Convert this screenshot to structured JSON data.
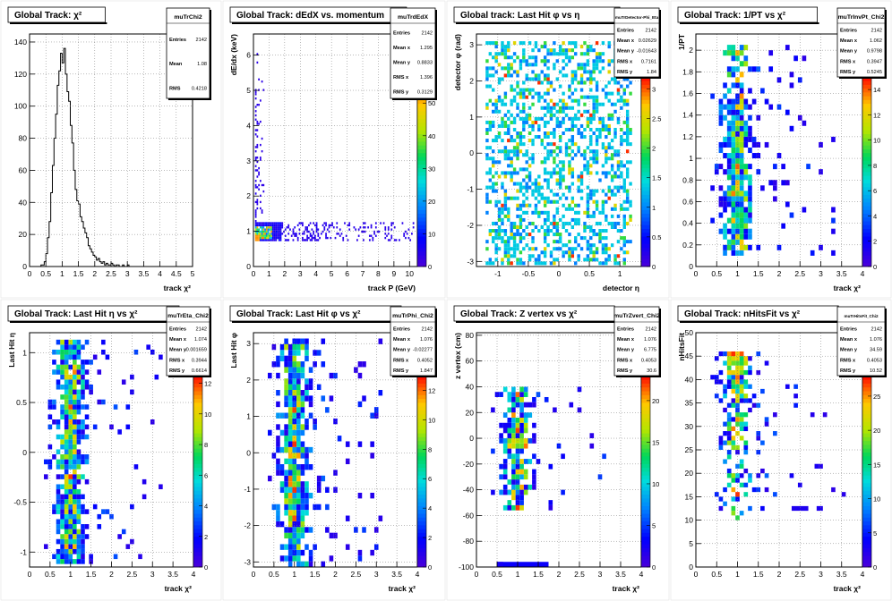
{
  "chart_data": [
    {
      "type": "histogram",
      "title": "Global Track: χ²",
      "xlabel": "track  χ²",
      "ylabel": "",
      "xlim": [
        0,
        5
      ],
      "ylim": [
        0,
        145
      ],
      "x_ticks": [
        "0",
        "0.5",
        "1",
        "1.5",
        "2",
        "2.5",
        "3",
        "3.5",
        "4",
        "4.5",
        "5"
      ],
      "y_ticks": [
        "0",
        "20",
        "40",
        "60",
        "80",
        "100",
        "120",
        "140"
      ],
      "stats": {
        "name": "muTrChi2",
        "rows": [
          [
            "Entries",
            "2142"
          ],
          [
            "Mean",
            "1.08"
          ],
          [
            "RMS",
            "0.4218"
          ]
        ]
      },
      "bins_x": [
        0.3,
        0.35,
        0.4,
        0.45,
        0.5,
        0.55,
        0.6,
        0.65,
        0.7,
        0.75,
        0.8,
        0.85,
        0.9,
        0.95,
        1.0,
        1.05,
        1.1,
        1.15,
        1.2,
        1.25,
        1.3,
        1.35,
        1.4,
        1.45,
        1.5,
        1.55,
        1.6,
        1.65,
        1.7,
        1.75,
        1.8,
        1.85,
        1.9,
        1.95,
        2.0,
        2.05,
        2.1,
        2.15,
        2.2,
        2.25,
        2.3,
        2.35,
        2.4,
        2.45,
        2.5,
        2.55,
        2.6,
        2.65,
        2.7,
        2.75,
        2.8,
        2.85,
        2.9,
        2.95,
        3.0,
        3.05,
        3.1,
        3.15,
        3.2
      ],
      "bins_y": [
        0,
        1,
        1,
        3,
        8,
        18,
        28,
        46,
        63,
        80,
        95,
        113,
        122,
        133,
        127,
        136,
        120,
        109,
        103,
        88,
        77,
        60,
        48,
        41,
        39,
        31,
        28,
        24,
        21,
        18,
        13,
        11,
        9,
        7,
        6,
        4,
        5,
        3,
        2,
        3,
        1,
        2,
        1,
        1,
        2,
        1,
        0,
        1,
        1,
        0,
        0,
        1,
        0,
        0,
        1,
        0,
        0,
        0,
        0
      ]
    },
    {
      "type": "heatmap",
      "title": "Global Track: dEdX vs. momentum",
      "xlabel": "track P (GeV)",
      "ylabel": "dE/dx (keV)",
      "xlim": [
        0,
        10.5
      ],
      "ylim": [
        0,
        6.6
      ],
      "x_ticks": [
        "0",
        "1",
        "2",
        "3",
        "4",
        "5",
        "6",
        "7",
        "8",
        "9",
        "10"
      ],
      "y_ticks": [
        "0",
        "1",
        "2",
        "3",
        "4",
        "5",
        "6"
      ],
      "z_ticks": [
        "0",
        "10",
        "20",
        "30",
        "40",
        "50"
      ],
      "zmax": 58,
      "stats": {
        "name": "muTrdEdX",
        "rows": [
          [
            "Entries",
            "2142"
          ],
          [
            "Mean x",
            "1.295"
          ],
          [
            "Mean y",
            "0.8833"
          ],
          [
            "RMS x",
            "1.396"
          ],
          [
            "RMS y",
            "0.3129"
          ]
        ]
      }
    },
    {
      "type": "heatmap",
      "title": "Global track: Last Hit φ vs η",
      "xlabel": "detector  η",
      "ylabel": "detector  φ (rad)",
      "xlim": [
        -1.35,
        1.35
      ],
      "ylim": [
        -3.14,
        3.3
      ],
      "x_ticks": [
        "-1",
        "-0.5",
        "0",
        "0.5",
        "1"
      ],
      "y_ticks": [
        "-3",
        "-2",
        "-1",
        "0",
        "1",
        "2",
        "3"
      ],
      "z_ticks": [
        "0",
        "0.5",
        "1",
        "1.5",
        "2",
        "2.5",
        "3"
      ],
      "zmax": 3.2,
      "stats": {
        "name": "muTrDetector-Phi_Eta",
        "rows": [
          [
            "Entries",
            "2142"
          ],
          [
            "Mean x",
            "0.02629"
          ],
          [
            "Mean y",
            "-0.01643"
          ],
          [
            "RMS x",
            "0.7161"
          ],
          [
            "RMS y",
            "1.84"
          ]
        ]
      }
    },
    {
      "type": "heatmap",
      "title": "Global Track: 1/PT vs χ²",
      "xlabel": "track  χ²",
      "ylabel": "1/PT",
      "xlim": [
        0,
        4
      ],
      "ylim": [
        0,
        2.15
      ],
      "x_ticks": [
        "0",
        "0.5",
        "1",
        "1.5",
        "2",
        "2.5",
        "3",
        "3.5",
        "4"
      ],
      "y_ticks": [
        "0",
        "0.2",
        "0.4",
        "0.6",
        "0.8",
        "1",
        "1.2",
        "1.4",
        "1.6",
        "1.8",
        "2"
      ],
      "z_ticks": [
        "0",
        "2",
        "4",
        "6",
        "8",
        "10",
        "12",
        "14"
      ],
      "zmax": 15,
      "stats": {
        "name": "muTrInvPt_Chi2",
        "rows": [
          [
            "Entries",
            "2142"
          ],
          [
            "Mean x",
            "1.062"
          ],
          [
            "Mean y",
            "0.9798"
          ],
          [
            "RMS x",
            "0.3947"
          ],
          [
            "RMS y",
            "0.5245"
          ]
        ]
      }
    },
    {
      "type": "heatmap",
      "title": "Global Track: Last Hit η vs χ²",
      "xlabel": "track  χ²",
      "ylabel": "Last Hit  η",
      "xlim": [
        0,
        4
      ],
      "ylim": [
        -1.15,
        1.2
      ],
      "x_ticks": [
        "0",
        "0.5",
        "1",
        "1.5",
        "2",
        "2.5",
        "3",
        "3.5",
        "4"
      ],
      "y_ticks": [
        "-1",
        "-0.5",
        "0",
        "0.5",
        "1"
      ],
      "z_ticks": [
        "0",
        "2",
        "4",
        "6",
        "8",
        "10",
        "12"
      ],
      "zmax": 12.5,
      "stats": {
        "name": "muTrEta_Chi2",
        "rows": [
          [
            "Entries",
            "2142"
          ],
          [
            "Mean x",
            "1.074"
          ],
          [
            "Mean y",
            "-0.001659"
          ],
          [
            "RMS x",
            "0.3944"
          ],
          [
            "RMS y",
            "0.6614"
          ]
        ]
      }
    },
    {
      "type": "heatmap",
      "title": "Global Track: Last Hit φ vs χ²",
      "xlabel": "track  χ²",
      "ylabel": "Last Hit  φ",
      "xlim": [
        0,
        4
      ],
      "ylim": [
        -3.14,
        3.3
      ],
      "x_ticks": [
        "0",
        "0.5",
        "1",
        "1.5",
        "2",
        "2.5",
        "3",
        "3.5",
        "4"
      ],
      "y_ticks": [
        "-3",
        "-2",
        "-1",
        "0",
        "1",
        "2",
        "3"
      ],
      "z_ticks": [
        "0",
        "2",
        "4",
        "6",
        "8",
        "10",
        "12"
      ],
      "zmax": 13,
      "stats": {
        "name": "muTrPhi_Chi2",
        "rows": [
          [
            "Entries",
            "2142"
          ],
          [
            "Mean x",
            "1.076"
          ],
          [
            "Mean y",
            "-0.02277"
          ],
          [
            "RMS x",
            "0.4052"
          ],
          [
            "RMS y",
            "1.847"
          ]
        ]
      }
    },
    {
      "type": "heatmap",
      "title": "Global Track: Z vertex vs χ²",
      "xlabel": "track  χ²",
      "ylabel": "z vertex (cm)",
      "xlim": [
        0,
        4
      ],
      "ylim": [
        -100,
        82
      ],
      "x_ticks": [
        "0",
        "0.5",
        "1",
        "1.5",
        "2",
        "2.5",
        "3",
        "3.5",
        "4"
      ],
      "y_ticks": [
        "-100",
        "-80",
        "-60",
        "-40",
        "-20",
        "0",
        "20",
        "40",
        "60",
        "80"
      ],
      "z_ticks": [
        "0",
        "5",
        "10",
        "15",
        "20"
      ],
      "zmax": 23,
      "stats": {
        "name": "muTrZvert_Chi2",
        "rows": [
          [
            "Entries",
            "2142"
          ],
          [
            "Mean x",
            "1.076"
          ],
          [
            "Mean y",
            "6.775"
          ],
          [
            "RMS x",
            "0.4053"
          ],
          [
            "RMS y",
            "30.6"
          ]
        ]
      }
    },
    {
      "type": "heatmap",
      "title": "Global Track: nHitsFit vs χ²",
      "xlabel": "track  χ²",
      "ylabel": "nHitsFit",
      "xlim": [
        0,
        4
      ],
      "ylim": [
        0,
        50
      ],
      "x_ticks": [
        "0",
        "0.5",
        "1",
        "1.5",
        "2",
        "2.5",
        "3",
        "3.5",
        "4"
      ],
      "y_ticks": [
        "0",
        "5",
        "10",
        "15",
        "20",
        "25",
        "30",
        "35",
        "40",
        "45",
        "50"
      ],
      "z_ticks": [
        "0",
        "5",
        "10",
        "15",
        "20",
        "25"
      ],
      "zmax": 28,
      "stats": {
        "name": "muTrHitsFit_Chi2",
        "rows": [
          [
            "Entries",
            "2142"
          ],
          [
            "Mean x",
            "1.076"
          ],
          [
            "Mean y",
            "34.59"
          ],
          [
            "RMS x",
            "0.4053"
          ],
          [
            "RMS y",
            "10.52"
          ]
        ]
      }
    }
  ]
}
